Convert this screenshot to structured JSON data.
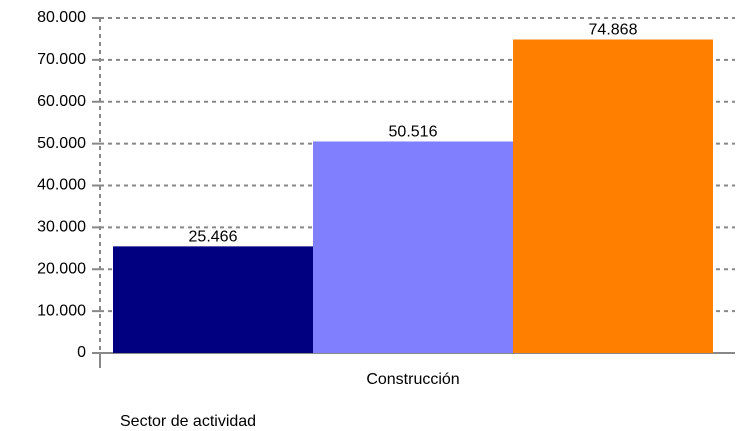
{
  "chart_data": {
    "type": "bar",
    "categories": [
      "Construcción"
    ],
    "x_label": "Sector de actividad",
    "series": [
      {
        "color": "#000080",
        "values": [
          25466
        ],
        "value_labels": [
          "25.466"
        ]
      },
      {
        "color": "#8080ff",
        "values": [
          50516
        ],
        "value_labels": [
          "50.516"
        ]
      },
      {
        "color": "#ff8000",
        "values": [
          74868
        ],
        "value_labels": [
          "74.868"
        ]
      }
    ],
    "ylim": [
      0,
      80000
    ],
    "yticks": [
      0,
      {
        "value": 10000,
        "label": "10.000"
      },
      {
        "value": 20000,
        "label": "20.000"
      },
      {
        "value": 30000,
        "label": "30.000"
      },
      {
        "value": 40000,
        "label": "40.000"
      },
      {
        "value": 50000,
        "label": "50.000"
      },
      {
        "value": 60000,
        "label": "60.000"
      },
      {
        "value": 70000,
        "label": "70.000"
      },
      {
        "value": 80000,
        "label": "80.000"
      }
    ],
    "grid": true
  }
}
